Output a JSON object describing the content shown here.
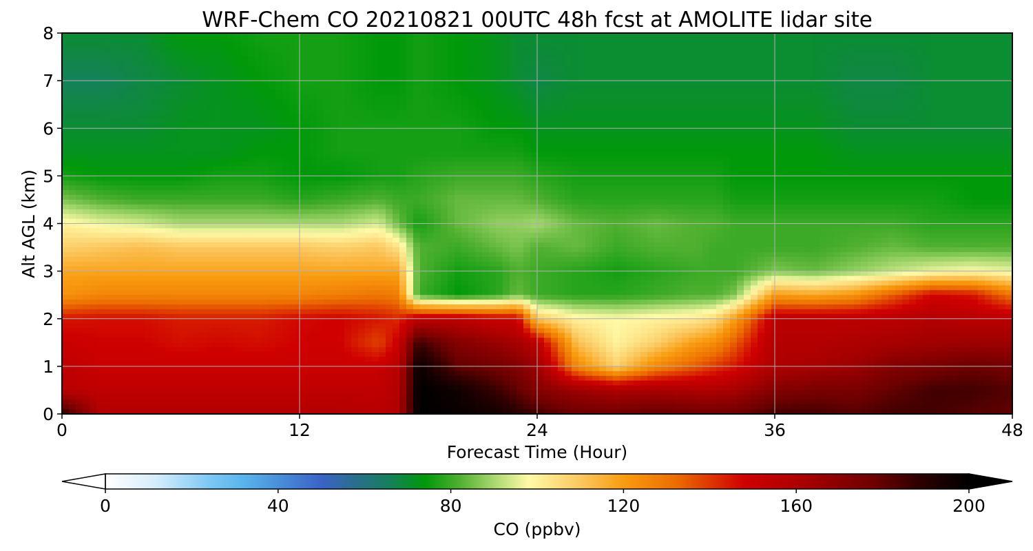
{
  "chart_data": {
    "type": "heatmap",
    "title": "WRF-Chem CO  20210821 00UTC 48h fcst at AMOLITE lidar site",
    "xlabel": "Forecast Time (Hour)",
    "ylabel": "Alt AGL (km)",
    "xlim": [
      0,
      48
    ],
    "ylim": [
      0,
      8
    ],
    "xticks": [
      "0",
      "12",
      "24",
      "36",
      "48"
    ],
    "yticks": [
      "0",
      "1",
      "2",
      "3",
      "4",
      "5",
      "6",
      "7",
      "8"
    ],
    "grid": true,
    "colorbar": {
      "label": "CO  (ppbv)",
      "range": [
        0,
        200
      ],
      "ticks": [
        "0",
        "40",
        "80",
        "120",
        "160",
        "200"
      ],
      "extend": "both",
      "stops": [
        {
          "v": 0,
          "c": "#ffffff"
        },
        {
          "v": 12,
          "c": "#d4ecfa"
        },
        {
          "v": 24,
          "c": "#7dc8f5"
        },
        {
          "v": 32,
          "c": "#59b4ec"
        },
        {
          "v": 40,
          "c": "#4a8fda"
        },
        {
          "v": 50,
          "c": "#3a63c6"
        },
        {
          "v": 58,
          "c": "#2a6e8c"
        },
        {
          "v": 66,
          "c": "#16805a"
        },
        {
          "v": 74,
          "c": "#00990a"
        },
        {
          "v": 82,
          "c": "#50b030"
        },
        {
          "v": 90,
          "c": "#a8d870"
        },
        {
          "v": 98,
          "c": "#fffaa8"
        },
        {
          "v": 110,
          "c": "#fbc860"
        },
        {
          "v": 120,
          "c": "#f99c10"
        },
        {
          "v": 132,
          "c": "#ec6e00"
        },
        {
          "v": 148,
          "c": "#cf0000"
        },
        {
          "v": 162,
          "c": "#a80000"
        },
        {
          "v": 178,
          "c": "#6e0000"
        },
        {
          "v": 188,
          "c": "#300000"
        },
        {
          "v": 200,
          "c": "#000000"
        }
      ]
    },
    "hours": [
      0,
      2,
      4,
      6,
      8,
      10,
      12,
      14,
      16,
      17,
      18,
      20,
      22,
      23,
      24,
      26,
      28,
      30,
      32,
      33,
      34,
      36,
      38,
      40,
      42,
      44,
      46,
      48
    ],
    "altitudes_km": [
      0,
      0.5,
      1,
      1.5,
      2,
      2.5,
      3,
      3.5,
      4,
      4.5,
      5,
      5.5,
      6,
      7,
      8
    ],
    "co_ppbv": [
      [
        190,
        158,
        158,
        158,
        158,
        158,
        158,
        158,
        156,
        160,
        200,
        198,
        195,
        190,
        185,
        178,
        178,
        180,
        178,
        178,
        178,
        185,
        185,
        182,
        185,
        185,
        182,
        180
      ],
      [
        156,
        154,
        154,
        154,
        154,
        154,
        154,
        154,
        154,
        158,
        200,
        196,
        186,
        180,
        172,
        165,
        160,
        162,
        160,
        160,
        162,
        172,
        175,
        175,
        180,
        185,
        185,
        182
      ],
      [
        154,
        150,
        150,
        150,
        150,
        150,
        150,
        150,
        150,
        156,
        198,
        180,
        176,
        172,
        165,
        125,
        108,
        125,
        135,
        140,
        145,
        160,
        162,
        165,
        172,
        175,
        178,
        176
      ],
      [
        150,
        148,
        148,
        146,
        147,
        146,
        148,
        148,
        138,
        150,
        186,
        172,
        166,
        162,
        155,
        112,
        100,
        108,
        120,
        124,
        135,
        158,
        158,
        160,
        162,
        164,
        165,
        165
      ],
      [
        145,
        146,
        146,
        144,
        144,
        144,
        147,
        148,
        145,
        142,
        155,
        155,
        150,
        150,
        110,
        100,
        98,
        100,
        102,
        106,
        120,
        155,
        155,
        155,
        156,
        158,
        156,
        156
      ],
      [
        122,
        126,
        126,
        126,
        126,
        126,
        126,
        128,
        130,
        128,
        80,
        74,
        78,
        84,
        80,
        78,
        78,
        80,
        82,
        82,
        86,
        120,
        118,
        122,
        135,
        148,
        145,
        130
      ],
      [
        118,
        118,
        118,
        118,
        118,
        118,
        118,
        118,
        118,
        118,
        82,
        76,
        78,
        82,
        80,
        78,
        76,
        78,
        80,
        80,
        80,
        86,
        84,
        88,
        92,
        96,
        98,
        96
      ],
      [
        108,
        110,
        112,
        110,
        110,
        110,
        110,
        108,
        110,
        104,
        82,
        80,
        84,
        86,
        82,
        84,
        80,
        82,
        82,
        80,
        80,
        80,
        80,
        82,
        84,
        82,
        82,
        82
      ],
      [
        100,
        96,
        94,
        90,
        90,
        90,
        90,
        90,
        94,
        84,
        76,
        84,
        88,
        88,
        90,
        84,
        82,
        84,
        82,
        82,
        80,
        80,
        80,
        80,
        80,
        78,
        78,
        78
      ],
      [
        86,
        82,
        80,
        80,
        80,
        80,
        78,
        80,
        82,
        80,
        80,
        84,
        84,
        84,
        82,
        78,
        78,
        78,
        78,
        78,
        76,
        76,
        76,
        76,
        76,
        76,
        74,
        74
      ],
      [
        76,
        74,
        74,
        74,
        76,
        76,
        74,
        74,
        76,
        76,
        78,
        80,
        80,
        80,
        78,
        76,
        76,
        76,
        76,
        76,
        74,
        74,
        74,
        74,
        74,
        74,
        74,
        74
      ],
      [
        72,
        72,
        72,
        72,
        72,
        74,
        74,
        76,
        76,
        76,
        76,
        76,
        76,
        76,
        74,
        74,
        74,
        74,
        74,
        74,
        74,
        74,
        74,
        72,
        72,
        72,
        72,
        72
      ],
      [
        70,
        70,
        70,
        72,
        72,
        72,
        74,
        76,
        76,
        76,
        76,
        76,
        74,
        74,
        72,
        72,
        72,
        72,
        72,
        72,
        72,
        72,
        72,
        70,
        70,
        70,
        70,
        70
      ],
      [
        66,
        66,
        68,
        70,
        72,
        74,
        76,
        76,
        74,
        74,
        76,
        74,
        72,
        70,
        68,
        70,
        70,
        70,
        70,
        70,
        70,
        70,
        70,
        68,
        68,
        70,
        70,
        70
      ],
      [
        70,
        70,
        70,
        74,
        74,
        76,
        76,
        76,
        74,
        74,
        76,
        74,
        72,
        70,
        70,
        70,
        70,
        70,
        70,
        70,
        70,
        70,
        70,
        70,
        70,
        70,
        70,
        70
      ]
    ]
  }
}
